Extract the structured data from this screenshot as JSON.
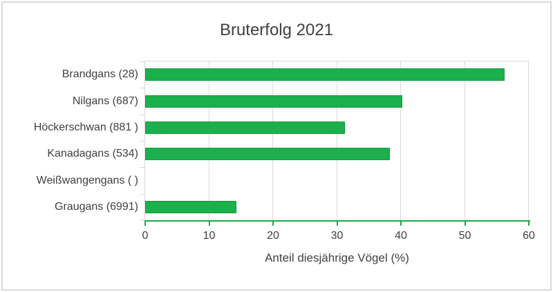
{
  "chart_data": {
    "type": "bar",
    "orientation": "horizontal",
    "title": "Bruterfolg 2021",
    "xlabel": "Anteil diesjährige Vögel (%)",
    "categories": [
      "Brandgans (28)",
      "Nilgans (687)",
      "Höckerschwan (881 )",
      "Kanadagans (534)",
      "Weißwangengans ( )",
      "Graugans (6991)"
    ],
    "values": [
      56,
      40,
      31,
      38,
      0,
      14
    ],
    "xlim": [
      0,
      60
    ],
    "xticks": [
      0,
      10,
      20,
      30,
      40,
      50,
      60
    ],
    "grid": true,
    "legend": false,
    "colors": {
      "bar_fill": "#1cb04c",
      "bar_border": "#149a3d",
      "axis_line": "#18a944",
      "gridline": "#d9d9d9",
      "text": "#404040",
      "frame_border": "#d9d9d9",
      "background": "#ffffff"
    }
  }
}
